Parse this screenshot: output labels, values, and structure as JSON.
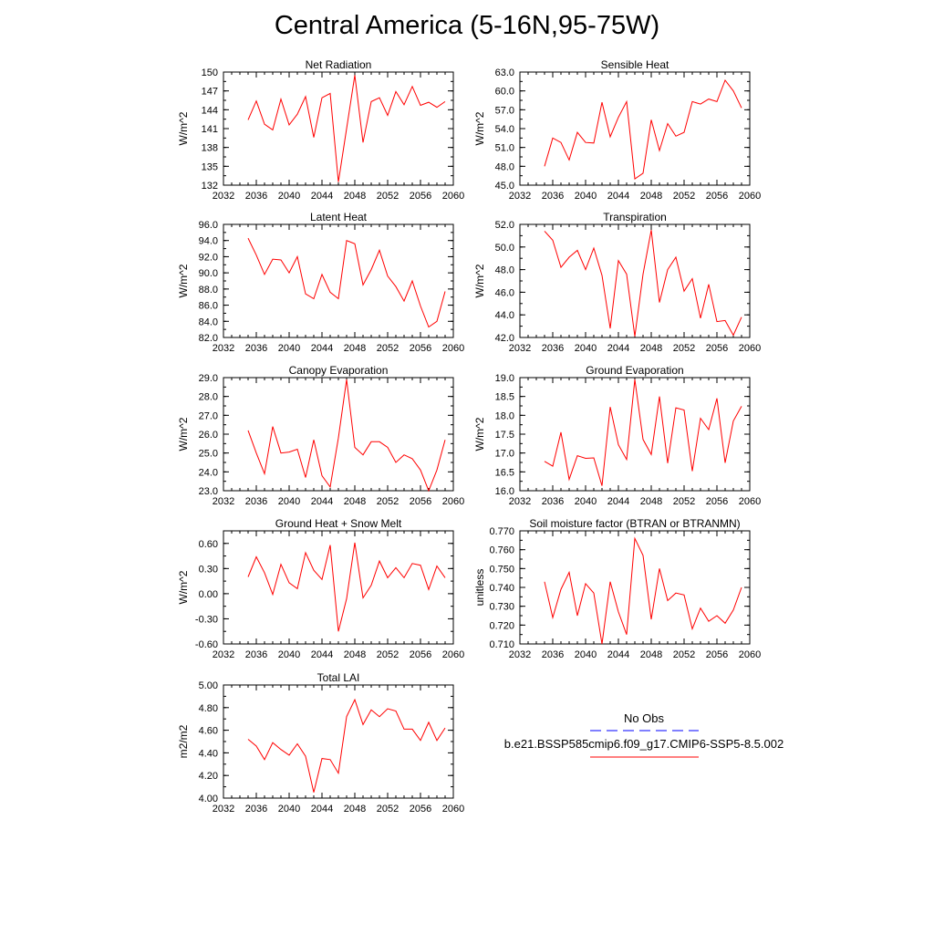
{
  "title": "Central America (5-16N,95-75W)",
  "legend": {
    "obs_label": "No Obs",
    "obs_color": "#0000ff",
    "model_label": "b.e21.BSSP585cmip6.f09_g17.CMIP6-SSP5-8.5.002",
    "model_color": "#ff0000"
  },
  "chart_data": [
    {
      "type": "line",
      "title": "Net Radiation",
      "ylabel": "W/m^2",
      "xlim": [
        2032,
        2060
      ],
      "ylim": [
        132,
        150
      ],
      "xticks": [
        "2032",
        "2036",
        "2040",
        "2044",
        "2048",
        "2052",
        "2056",
        "2060"
      ],
      "yticks": [
        "132",
        "135",
        "138",
        "141",
        "144",
        "147",
        "150"
      ],
      "x": [
        2035,
        2036,
        2037,
        2038,
        2039,
        2040,
        2041,
        2042,
        2043,
        2044,
        2045,
        2046,
        2047,
        2048,
        2049,
        2050,
        2051,
        2052,
        2053,
        2054,
        2055,
        2056,
        2057,
        2058,
        2059
      ],
      "series": [
        {
          "values": [
            142.4,
            145.4,
            141.7,
            140.8,
            145.7,
            141.6,
            143.3,
            146.1,
            139.6,
            145.9,
            146.6,
            132.5,
            141.0,
            149.5,
            138.8,
            145.3,
            145.9,
            143.1,
            146.9,
            144.8,
            147.7,
            144.7,
            145.2,
            144.4,
            145.3
          ]
        }
      ]
    },
    {
      "type": "line",
      "title": "Sensible Heat",
      "ylabel": "W/m^2",
      "xlim": [
        2032,
        2060
      ],
      "ylim": [
        45,
        63
      ],
      "xticks": [
        "2032",
        "2036",
        "2040",
        "2044",
        "2048",
        "2052",
        "2056",
        "2060"
      ],
      "yticks": [
        "45.0",
        "48.0",
        "51.0",
        "54.0",
        "57.0",
        "60.0",
        "63.0"
      ],
      "x": [
        2035,
        2036,
        2037,
        2038,
        2039,
        2040,
        2041,
        2042,
        2043,
        2044,
        2045,
        2046,
        2047,
        2048,
        2049,
        2050,
        2051,
        2052,
        2053,
        2054,
        2055,
        2056,
        2057,
        2058,
        2059
      ],
      "series": [
        {
          "values": [
            48.0,
            52.5,
            51.8,
            49.0,
            53.4,
            51.8,
            51.7,
            58.2,
            52.7,
            55.8,
            58.3,
            46.0,
            46.9,
            55.4,
            50.5,
            54.8,
            52.8,
            53.4,
            58.3,
            57.9,
            58.7,
            58.3,
            61.7,
            60.0,
            57.3
          ]
        }
      ]
    },
    {
      "type": "line",
      "title": "Latent Heat",
      "ylabel": "W/m^2",
      "xlim": [
        2032,
        2060
      ],
      "ylim": [
        82,
        96
      ],
      "xticks": [
        "2032",
        "2036",
        "2040",
        "2044",
        "2048",
        "2052",
        "2056",
        "2060"
      ],
      "yticks": [
        "82.0",
        "84.0",
        "86.0",
        "88.0",
        "90.0",
        "92.0",
        "94.0",
        "96.0"
      ],
      "x": [
        2035,
        2036,
        2037,
        2038,
        2039,
        2040,
        2041,
        2042,
        2043,
        2044,
        2045,
        2046,
        2047,
        2048,
        2049,
        2050,
        2051,
        2052,
        2053,
        2054,
        2055,
        2056,
        2057,
        2058,
        2059
      ],
      "series": [
        {
          "values": [
            94.3,
            92.2,
            89.8,
            91.7,
            91.6,
            90.0,
            92.0,
            87.4,
            86.8,
            89.8,
            87.6,
            86.8,
            94.0,
            93.6,
            88.5,
            90.4,
            92.8,
            89.6,
            88.3,
            86.5,
            89.0,
            85.9,
            83.3,
            84.0,
            87.7
          ]
        }
      ]
    },
    {
      "type": "line",
      "title": "Transpiration",
      "ylabel": "W/m^2",
      "xlim": [
        2032,
        2060
      ],
      "ylim": [
        42,
        52
      ],
      "xticks": [
        "2032",
        "2036",
        "2040",
        "2044",
        "2048",
        "2052",
        "2056",
        "2060"
      ],
      "yticks": [
        "42.0",
        "44.0",
        "46.0",
        "48.0",
        "50.0",
        "52.0"
      ],
      "x": [
        2035,
        2036,
        2037,
        2038,
        2039,
        2040,
        2041,
        2042,
        2043,
        2044,
        2045,
        2046,
        2047,
        2048,
        2049,
        2050,
        2051,
        2052,
        2053,
        2054,
        2055,
        2056,
        2057,
        2058,
        2059
      ],
      "series": [
        {
          "values": [
            51.4,
            50.6,
            48.2,
            49.1,
            49.7,
            48.0,
            49.9,
            47.5,
            42.8,
            48.8,
            47.6,
            42.1,
            47.6,
            51.5,
            45.1,
            48.0,
            49.1,
            46.1,
            47.2,
            43.7,
            46.7,
            43.4,
            43.5,
            42.2,
            43.8
          ]
        }
      ]
    },
    {
      "type": "line",
      "title": "Canopy Evaporation",
      "ylabel": "W/m^2",
      "xlim": [
        2032,
        2060
      ],
      "ylim": [
        23,
        29
      ],
      "xticks": [
        "2032",
        "2036",
        "2040",
        "2044",
        "2048",
        "2052",
        "2056",
        "2060"
      ],
      "yticks": [
        "23.0",
        "24.0",
        "25.0",
        "26.0",
        "27.0",
        "28.0",
        "29.0"
      ],
      "x": [
        2035,
        2036,
        2037,
        2038,
        2039,
        2040,
        2041,
        2042,
        2043,
        2044,
        2045,
        2046,
        2047,
        2048,
        2049,
        2050,
        2051,
        2052,
        2053,
        2054,
        2055,
        2056,
        2057,
        2058,
        2059
      ],
      "series": [
        {
          "values": [
            26.2,
            25.0,
            23.9,
            26.4,
            25.0,
            25.05,
            25.2,
            23.7,
            25.7,
            23.8,
            23.2,
            25.8,
            28.9,
            25.3,
            24.9,
            25.6,
            25.6,
            25.3,
            24.5,
            24.9,
            24.7,
            24.1,
            23.0,
            24.1,
            25.7
          ]
        }
      ]
    },
    {
      "type": "line",
      "title": "Ground Evaporation",
      "ylabel": "W/m^2",
      "xlim": [
        2032,
        2060
      ],
      "ylim": [
        16,
        19
      ],
      "xticks": [
        "2032",
        "2036",
        "2040",
        "2044",
        "2048",
        "2052",
        "2056",
        "2060"
      ],
      "yticks": [
        "16.0",
        "16.5",
        "17.0",
        "17.5",
        "18.0",
        "18.5",
        "19.0"
      ],
      "x": [
        2035,
        2036,
        2037,
        2038,
        2039,
        2040,
        2041,
        2042,
        2043,
        2044,
        2045,
        2046,
        2047,
        2048,
        2049,
        2050,
        2051,
        2052,
        2053,
        2054,
        2055,
        2056,
        2057,
        2058,
        2059
      ],
      "series": [
        {
          "values": [
            16.78,
            16.65,
            17.55,
            16.3,
            16.93,
            16.86,
            16.87,
            16.13,
            18.22,
            17.22,
            16.83,
            18.95,
            17.36,
            16.96,
            18.5,
            16.73,
            18.2,
            18.14,
            16.52,
            17.92,
            17.62,
            18.45,
            16.74,
            17.85,
            18.24
          ]
        }
      ]
    },
    {
      "type": "line",
      "title": "Ground Heat + Snow Melt",
      "ylabel": "W/m^2",
      "xlim": [
        2032,
        2060
      ],
      "ylim": [
        -0.6,
        0.75
      ],
      "xticks": [
        "2032",
        "2036",
        "2040",
        "2044",
        "2048",
        "2052",
        "2056",
        "2060"
      ],
      "yticks": [
        "-0.60",
        "-0.30",
        "0.00",
        "0.30",
        "0.60"
      ],
      "x": [
        2035,
        2036,
        2037,
        2038,
        2039,
        2040,
        2041,
        2042,
        2043,
        2044,
        2045,
        2046,
        2047,
        2048,
        2049,
        2050,
        2051,
        2052,
        2053,
        2054,
        2055,
        2056,
        2057,
        2058,
        2059
      ],
      "series": [
        {
          "values": [
            0.2,
            0.44,
            0.25,
            -0.01,
            0.35,
            0.13,
            0.06,
            0.49,
            0.28,
            0.17,
            0.58,
            -0.45,
            -0.06,
            0.61,
            -0.05,
            0.1,
            0.39,
            0.19,
            0.31,
            0.19,
            0.36,
            0.34,
            0.05,
            0.33,
            0.19
          ]
        }
      ]
    },
    {
      "type": "line",
      "title": "Soil moisture factor (BTRAN or BTRANMN)",
      "ylabel": "unitless",
      "xlim": [
        2032,
        2060
      ],
      "ylim": [
        0.71,
        0.77
      ],
      "xticks": [
        "2032",
        "2036",
        "2040",
        "2044",
        "2048",
        "2052",
        "2056",
        "2060"
      ],
      "yticks": [
        "0.710",
        "0.720",
        "0.730",
        "0.740",
        "0.750",
        "0.760",
        "0.770"
      ],
      "x": [
        2035,
        2036,
        2037,
        2038,
        2039,
        2040,
        2041,
        2042,
        2043,
        2044,
        2045,
        2046,
        2047,
        2048,
        2049,
        2050,
        2051,
        2052,
        2053,
        2054,
        2055,
        2056,
        2057,
        2058,
        2059
      ],
      "series": [
        {
          "values": [
            0.743,
            0.724,
            0.739,
            0.748,
            0.725,
            0.742,
            0.737,
            0.71,
            0.743,
            0.727,
            0.715,
            0.766,
            0.757,
            0.723,
            0.75,
            0.733,
            0.737,
            0.736,
            0.718,
            0.729,
            0.722,
            0.725,
            0.721,
            0.728,
            0.74
          ]
        }
      ]
    },
    {
      "type": "line",
      "title": "Total LAI",
      "ylabel": "m2/m2",
      "xlim": [
        2032,
        2060
      ],
      "ylim": [
        4.0,
        5.0
      ],
      "xticks": [
        "2032",
        "2036",
        "2040",
        "2044",
        "2048",
        "2052",
        "2056",
        "2060"
      ],
      "yticks": [
        "4.00",
        "4.20",
        "4.40",
        "4.60",
        "4.80",
        "5.00"
      ],
      "x": [
        2035,
        2036,
        2037,
        2038,
        2039,
        2040,
        2041,
        2042,
        2043,
        2044,
        2045,
        2046,
        2047,
        2048,
        2049,
        2050,
        2051,
        2052,
        2053,
        2054,
        2055,
        2056,
        2057,
        2058,
        2059
      ],
      "series": [
        {
          "values": [
            4.52,
            4.46,
            4.34,
            4.49,
            4.43,
            4.38,
            4.48,
            4.37,
            4.05,
            4.35,
            4.34,
            4.22,
            4.72,
            4.87,
            4.65,
            4.78,
            4.72,
            4.79,
            4.77,
            4.61,
            4.61,
            4.51,
            4.67,
            4.51,
            4.62
          ]
        }
      ]
    }
  ]
}
